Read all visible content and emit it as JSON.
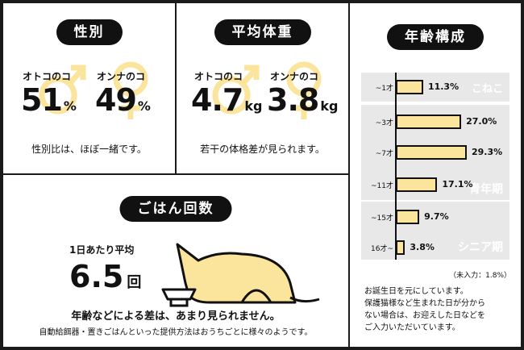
{
  "sex": {
    "title": "性別",
    "male_label": "オトコのコ",
    "male_value": "51",
    "male_unit": "%",
    "female_label": "オンナのコ",
    "female_value": "49",
    "female_unit": "%",
    "note": "性別比は、ほぼ一緒です。"
  },
  "weight": {
    "title": "平均体重",
    "male_label": "オトコのコ",
    "male_value": "4.7",
    "male_unit": "kg",
    "female_label": "オンナのコ",
    "female_value": "3.8",
    "female_unit": "kg",
    "note": "若干の体格差が見られます。"
  },
  "meals": {
    "title": "ごはん回数",
    "label": "1日あたり平均",
    "value": "6.5",
    "unit": "回",
    "note": "年齢などによる差は、あまり見られません。",
    "subnote": "自動給餌器・置きごはんといった提供方法はおうちごとに様々のようです。"
  },
  "age": {
    "title": "年齢構成",
    "bands": [
      "こねこ",
      "青年期",
      "シニア期"
    ],
    "unknown": "（未入力：1.8%）",
    "footnote": [
      "お誕生日を元にしています。",
      "保護猫様など生まれた日が分から",
      "ない場合は、お迎えした日などを",
      "ご入力いただいています。"
    ]
  },
  "colors": {
    "accent": "#fbe49b",
    "band": "#e8e8e8",
    "dark": "#111111"
  },
  "chart_data": [
    {
      "type": "bar",
      "title": "年齢構成",
      "orientation": "horizontal",
      "categories": [
        "~1才",
        "~3才",
        "~7才",
        "~11才",
        "~15才",
        "16才~"
      ],
      "values": [
        11.3,
        27.0,
        29.3,
        17.1,
        9.7,
        3.8
      ],
      "value_labels": [
        "11.3%",
        "27.0%",
        "29.3%",
        "17.1%",
        "9.7%",
        "3.8%"
      ],
      "unit": "%",
      "groups": [
        {
          "name": "こねこ",
          "categories": [
            "~1才"
          ]
        },
        {
          "name": "青年期",
          "categories": [
            "~3才",
            "~7才",
            "~11才"
          ]
        },
        {
          "name": "シニア期",
          "categories": [
            "~15才",
            "16才~"
          ]
        }
      ]
    }
  ]
}
